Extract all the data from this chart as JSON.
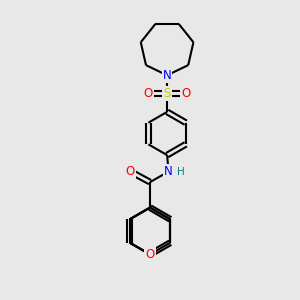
{
  "bg_color": "#e8e8e8",
  "bond_color": "#000000",
  "N_color": "#0000ff",
  "O_color": "#ff0000",
  "S_color": "#cccc00",
  "H_color": "#008080",
  "line_width": 1.5,
  "figsize": [
    3.0,
    3.0
  ],
  "dpi": 100,
  "xlim": [
    0,
    10
  ],
  "ylim": [
    0,
    10
  ]
}
